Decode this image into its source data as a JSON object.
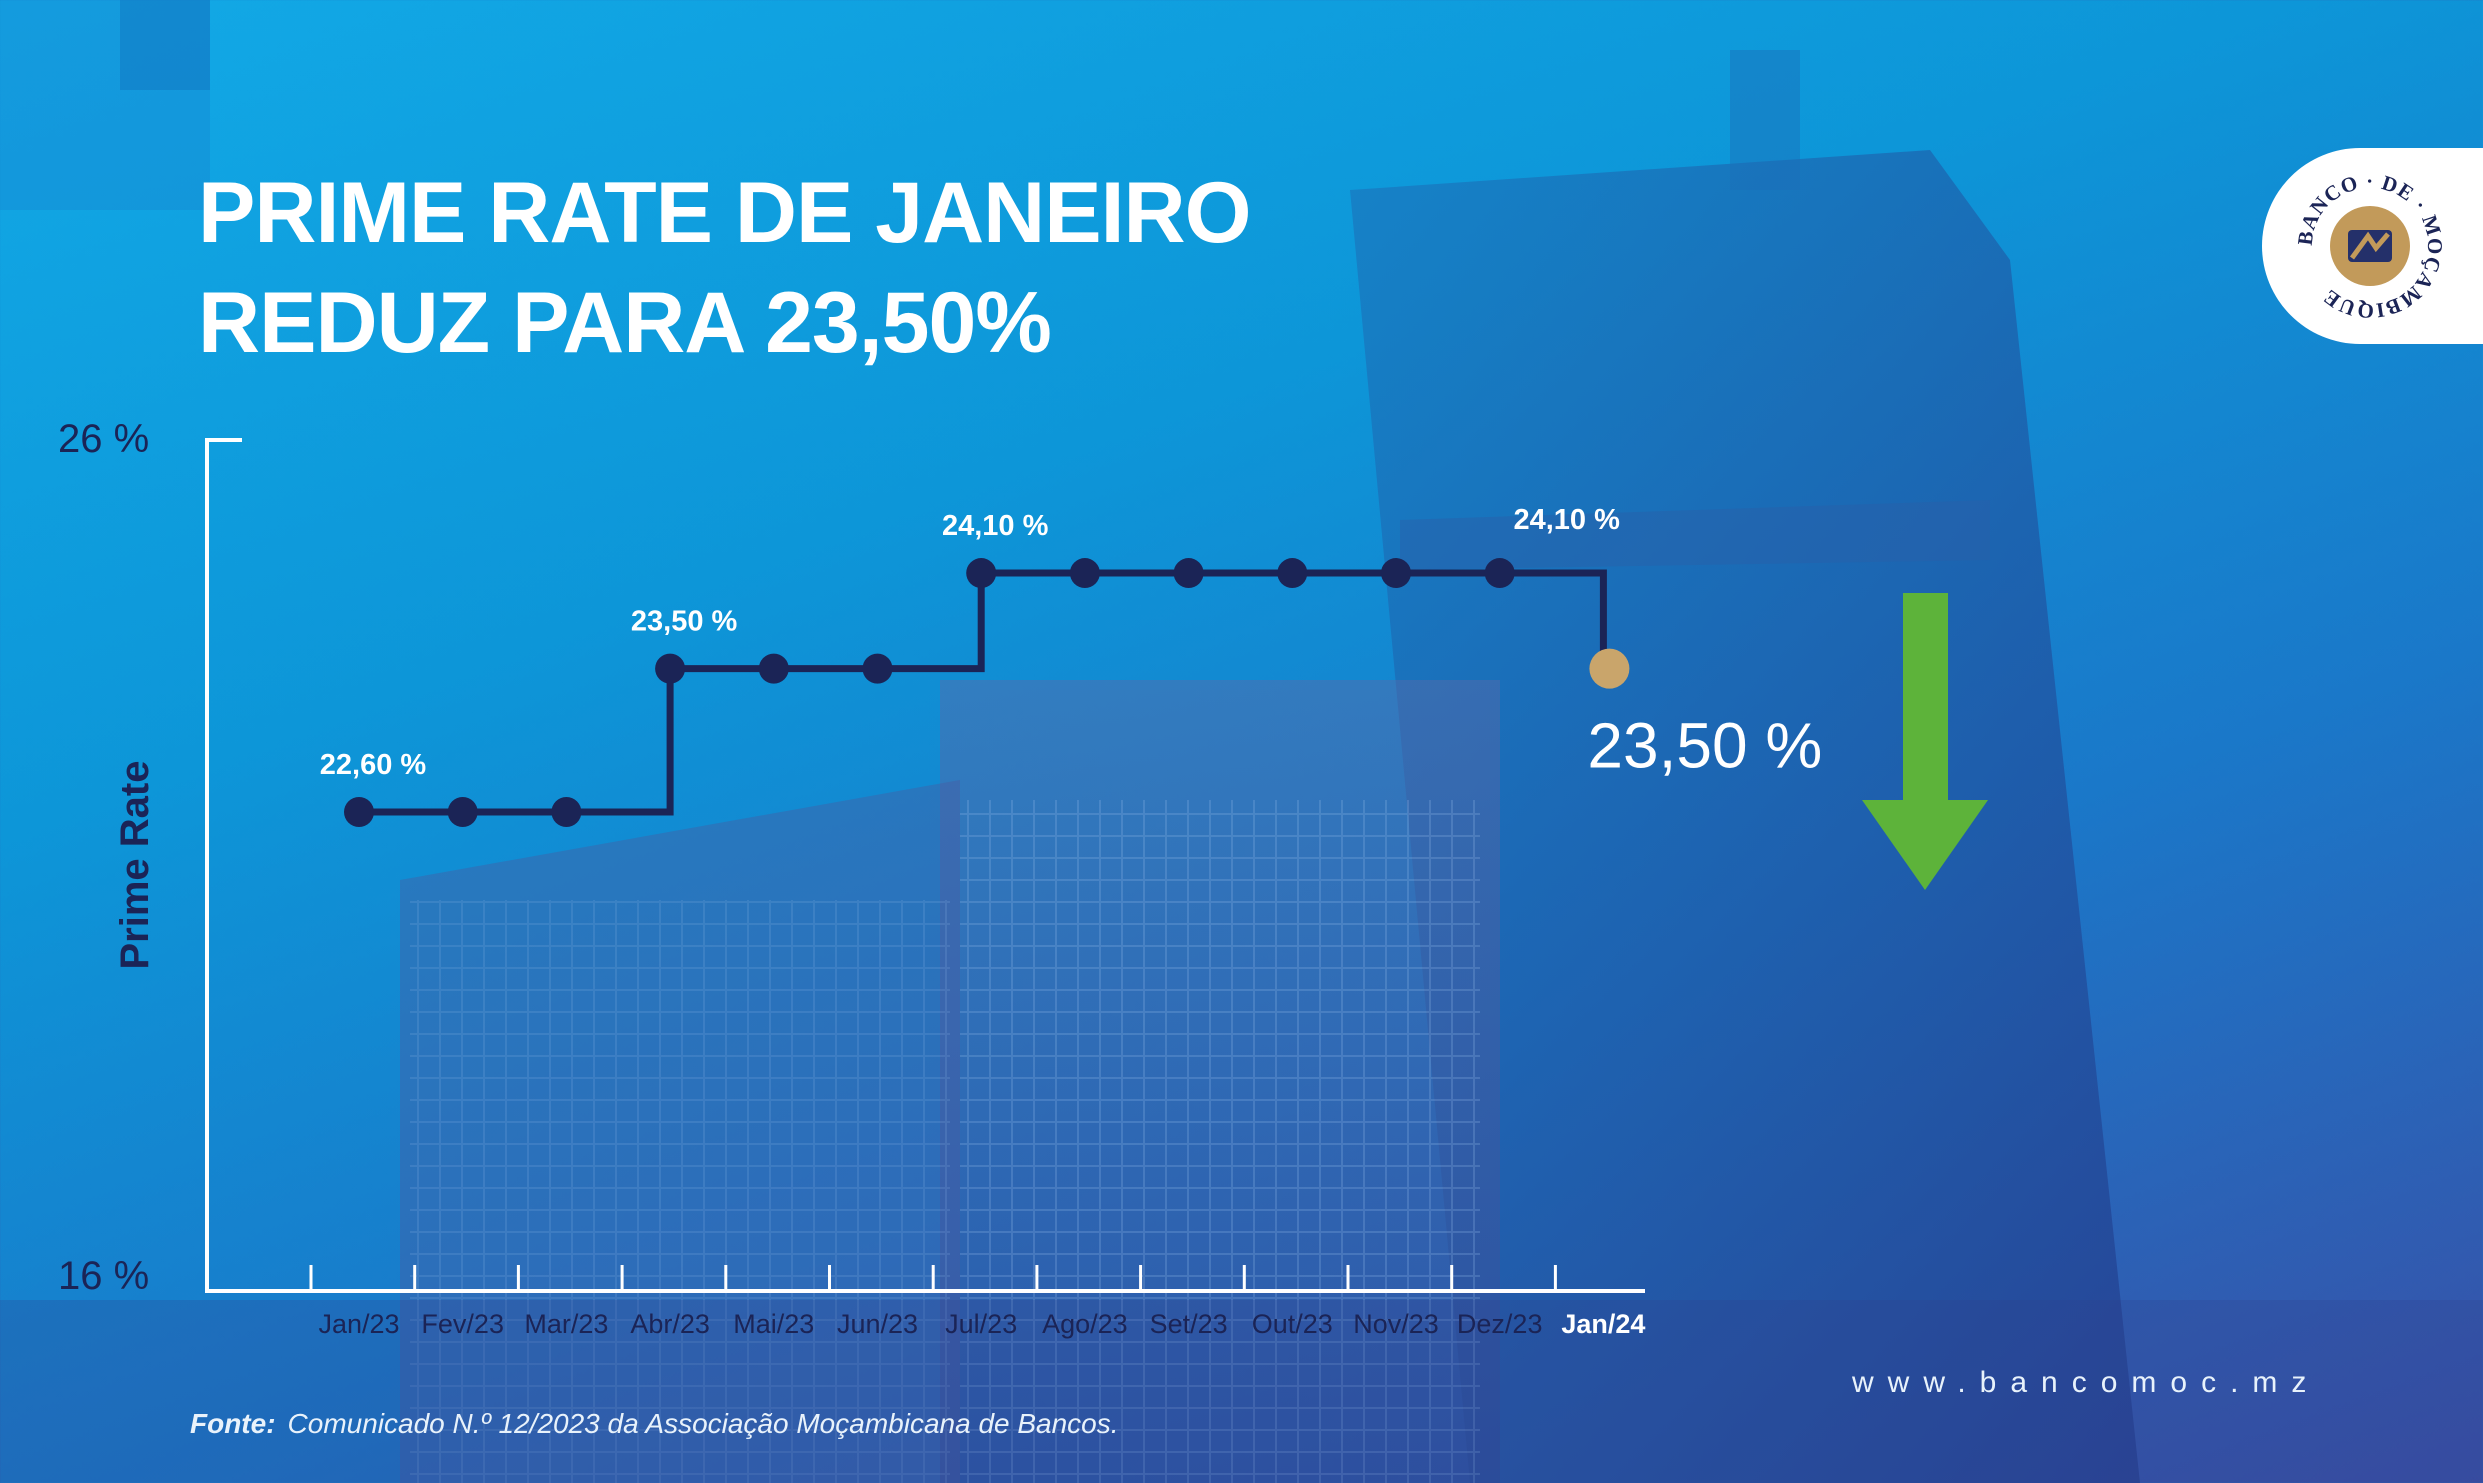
{
  "title": {
    "line1": "PRIME RATE DE JANEIRO",
    "line2": "REDUZ PARA 23,50%"
  },
  "colors": {
    "background": "#0d96d8",
    "line": "#1b2456",
    "highlight_point": "#c9a56b",
    "arrow": "#5db33a",
    "axis": "#ffffff"
  },
  "chart_data": {
    "type": "line",
    "title": "PRIME RATE DE JANEIRO REDUZ PARA 23,50%",
    "ylabel": "Prime Rate",
    "xlabel": "",
    "ylim": [
      16,
      26
    ],
    "y_tick_labels": [
      "26 %",
      "16 %"
    ],
    "grid": false,
    "line_style": "step",
    "categories": [
      "Jan/23",
      "Fev/23",
      "Mar/23",
      "Abr/23",
      "Mai/23",
      "Jun/23",
      "Jul/23",
      "Ago/23",
      "Set/23",
      "Out/23",
      "Nov/23",
      "Dez/23",
      "Jan/24"
    ],
    "highlight_category": "Jan/24",
    "series": [
      {
        "values": [
          22.6,
          22.6,
          22.6,
          23.5,
          23.5,
          23.5,
          24.1,
          24.1,
          24.1,
          24.1,
          24.1,
          24.1,
          23.5
        ]
      }
    ],
    "annotations": [
      {
        "category": "Jan/23",
        "text": "22,60 %"
      },
      {
        "category": "Abr/23",
        "text": "23,50 %"
      },
      {
        "category": "Jul/23",
        "text": "24,10 %"
      },
      {
        "category": "Dez/23",
        "text": "24,10 %"
      },
      {
        "category": "Jan/24",
        "text": "23,50 %",
        "emphasis": true
      }
    ],
    "trend_arrow": "down"
  },
  "logo": {
    "text": "BANCO · DE · MOÇAMBIQUE",
    "icon": "bank-emblem-icon"
  },
  "footer": {
    "website": "www.bancomoc.mz",
    "source_label": "Fonte:",
    "source_text": "Comunicado N.º 12/2023 da Associação Moçambicana de Bancos."
  }
}
